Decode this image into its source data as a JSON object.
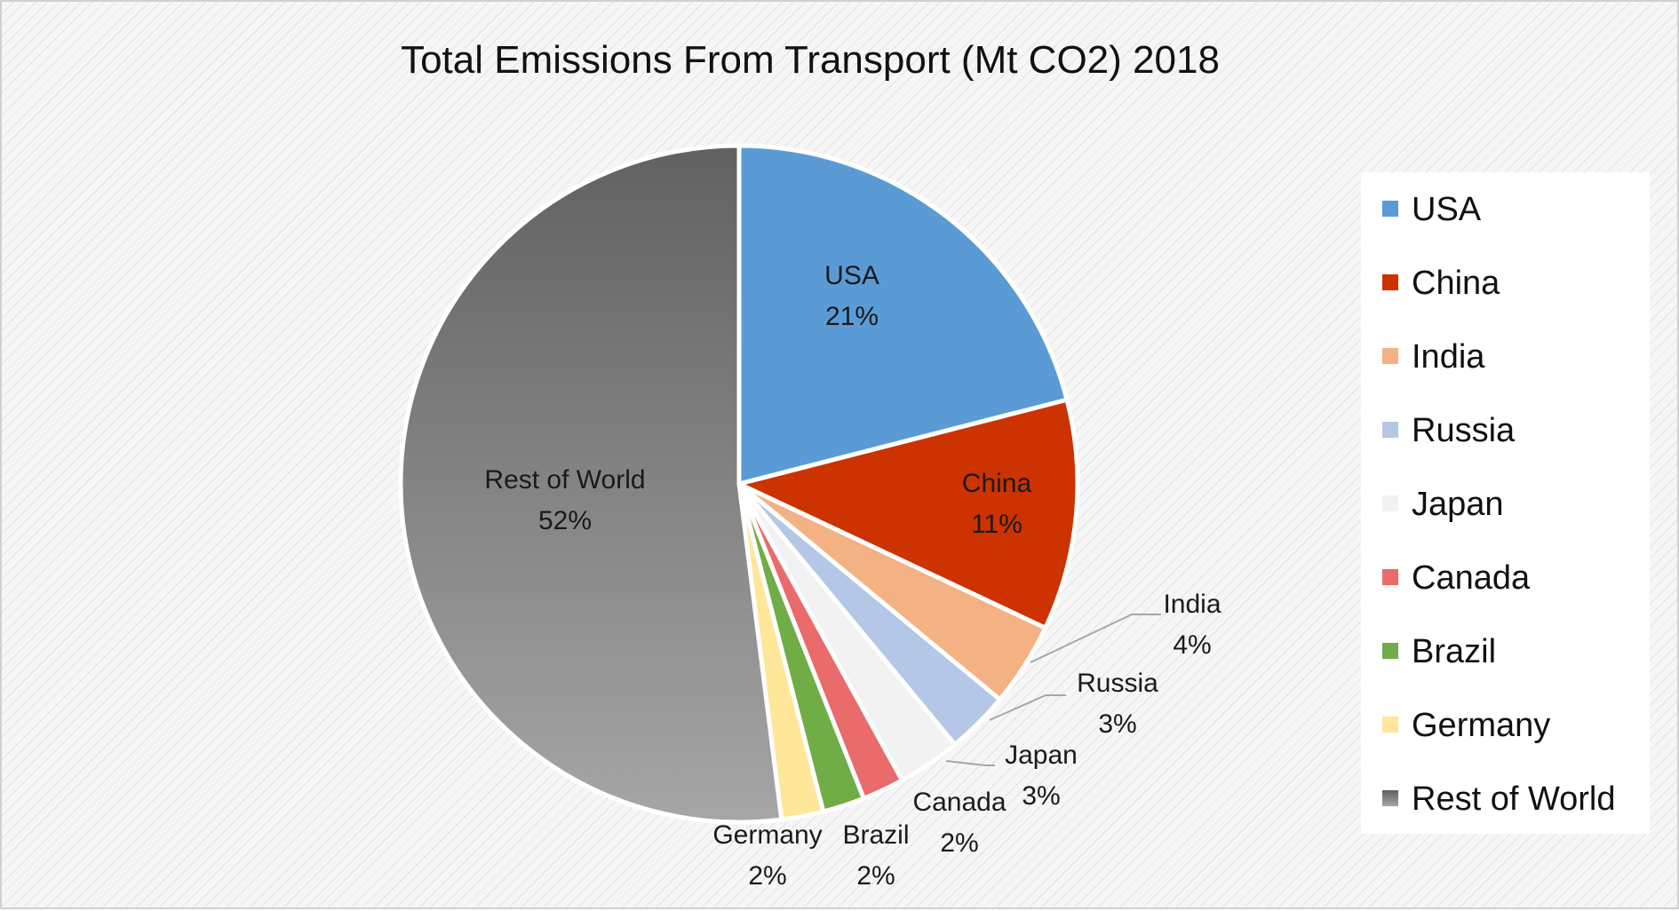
{
  "chart_data": {
    "type": "pie",
    "title": "Total Emissions From Transport (Mt CO2) 2018",
    "legend_position": "right",
    "slices": [
      {
        "label": "USA",
        "percent_label": "21%",
        "value": 21,
        "color": "#5b9bd5"
      },
      {
        "label": "China",
        "percent_label": "11%",
        "value": 11,
        "color": "#cc3300"
      },
      {
        "label": "India",
        "percent_label": "4%",
        "value": 4,
        "color": "#f4b183"
      },
      {
        "label": "Russia",
        "percent_label": "3%",
        "value": 3,
        "color": "#b4c7e7"
      },
      {
        "label": "Japan",
        "percent_label": "3%",
        "value": 3,
        "color": "#f2f2f2"
      },
      {
        "label": "Canada",
        "percent_label": "2%",
        "value": 2,
        "color": "#ea6b6b"
      },
      {
        "label": "Brazil",
        "percent_label": "2%",
        "value": 2,
        "color": "#70ad47"
      },
      {
        "label": "Germany",
        "percent_label": "2%",
        "value": 2,
        "color": "#ffe699"
      },
      {
        "label": "Rest of World",
        "percent_label": "52%",
        "value": 52,
        "color": "#7f7f7f"
      }
    ]
  }
}
